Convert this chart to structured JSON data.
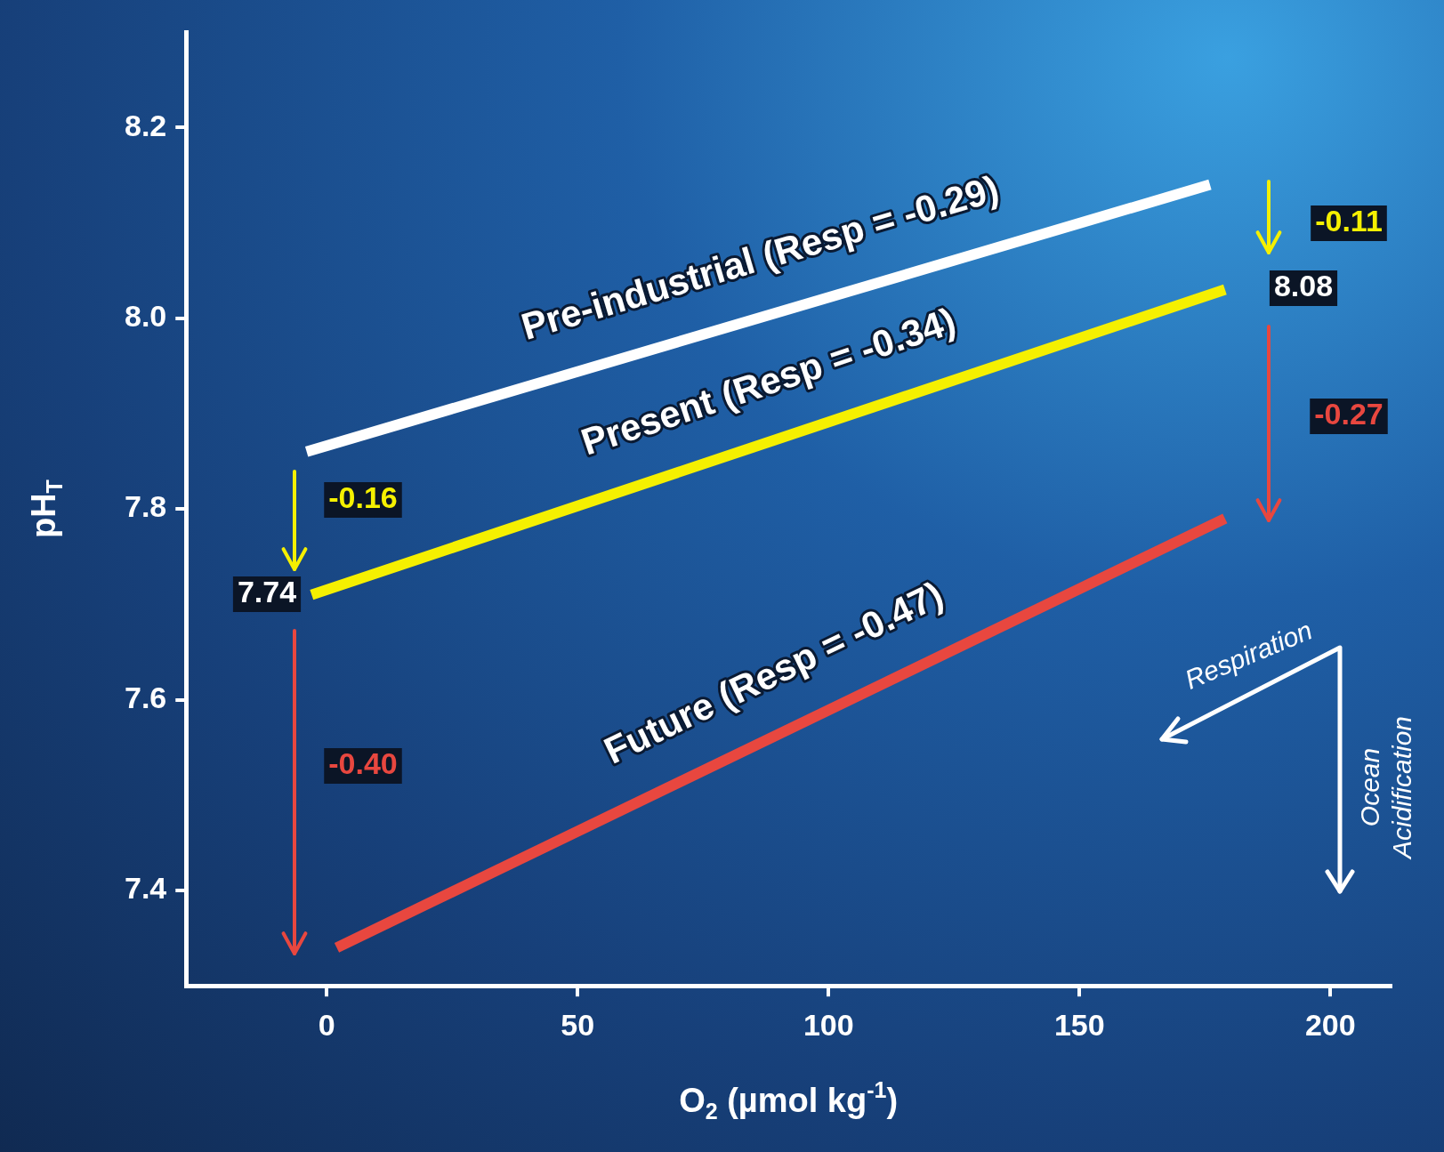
{
  "chart_data": {
    "type": "line",
    "xlabel": "O$_{2}$ (µmol kg$^{-1}$)",
    "ylabel": "pH$_{T}$",
    "xlim": [
      -28,
      212
    ],
    "xticks": [
      0,
      50,
      100,
      150,
      200
    ],
    "ylim": [
      7.3,
      8.3
    ],
    "yticks": [
      7.4,
      7.6,
      7.8,
      {
        "value": 8.0,
        "label": "8.0"
      },
      8.2
    ],
    "grid": false,
    "legend": false,
    "marker": "none",
    "line_style": "solid",
    "series": [
      {
        "name": "Pre-industrial (Resp = -0.29)",
        "color": "#ffffff",
        "x": [
          -4,
          176
        ],
        "values": [
          7.86,
          8.14
        ]
      },
      {
        "name": "Present (Resp = -0.34)",
        "color": "#f5f000",
        "x": [
          -3,
          179
        ],
        "values": [
          7.71,
          8.03
        ]
      },
      {
        "name": "Future (Resp = -0.47)",
        "color": "#e8473f",
        "x": [
          2,
          179
        ],
        "values": [
          7.34,
          7.79
        ]
      }
    ],
    "annotations": [
      "-0.16",
      "7.74",
      "-0.40",
      "-0.11",
      "8.08",
      "-0.27",
      "Respiration",
      "Ocean Acidification"
    ]
  }
}
